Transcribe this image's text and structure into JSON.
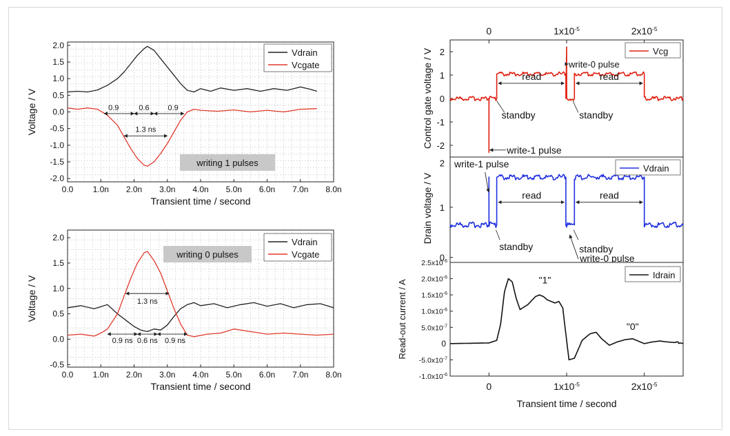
{
  "chart_data": [
    {
      "id": "write1",
      "type": "line",
      "xlabel": "Transient time / second",
      "ylabel": "Voltage / V",
      "xlim": [
        0,
        8
      ],
      "ylim": [
        -2.1,
        2.1
      ],
      "xticks": [
        "0.0",
        "1.0n",
        "2.0n",
        "3.0n",
        "4.0n",
        "5.0n",
        "6.0n",
        "7.0n",
        "8.0n"
      ],
      "yticks": [
        "-2.0",
        "-1.5",
        "-1.0",
        "-0.5",
        "0.0",
        "0.5",
        "1.0",
        "1.5",
        "2.0"
      ],
      "legend": [
        "Vdrain",
        "Vcgate"
      ],
      "label_box": "writing 1 pulses",
      "annotations": [
        "0.9",
        "0.6",
        "0.9",
        "1.3 ns"
      ],
      "series": [
        {
          "name": "Vdrain",
          "color": "#222222",
          "x": [
            0,
            0.3,
            0.6,
            0.9,
            1.2,
            1.5,
            1.7,
            1.9,
            2.1,
            2.3,
            2.4,
            2.6,
            2.8,
            3.0,
            3.2,
            3.4,
            3.6,
            3.8,
            4.0,
            4.3,
            4.6,
            5.0,
            5.4,
            5.8,
            6.2,
            6.6,
            7.0,
            7.3,
            7.5
          ],
          "y": [
            0.6,
            0.62,
            0.6,
            0.66,
            0.8,
            1.0,
            1.2,
            1.45,
            1.7,
            1.9,
            1.97,
            1.85,
            1.6,
            1.35,
            1.1,
            0.85,
            0.65,
            0.6,
            0.7,
            0.62,
            0.72,
            0.65,
            0.7,
            0.62,
            0.7,
            0.65,
            0.75,
            0.68,
            0.62
          ]
        },
        {
          "name": "Vcgate",
          "color": "#e0392b",
          "x": [
            0,
            0.3,
            0.6,
            0.9,
            1.2,
            1.5,
            1.7,
            1.9,
            2.1,
            2.3,
            2.4,
            2.6,
            2.8,
            3.0,
            3.2,
            3.4,
            3.6,
            3.8,
            4.0,
            4.5,
            5.0,
            5.5,
            6.0,
            6.5,
            7.0,
            7.5
          ],
          "y": [
            0.12,
            0.08,
            0.12,
            0.08,
            -0.1,
            -0.4,
            -0.75,
            -1.1,
            -1.4,
            -1.6,
            -1.63,
            -1.5,
            -1.25,
            -0.95,
            -0.6,
            -0.25,
            0.0,
            0.08,
            0.05,
            0.02,
            0.06,
            0.0,
            0.05,
            0.0,
            0.08,
            0.1
          ]
        }
      ]
    },
    {
      "id": "write0",
      "type": "line",
      "xlabel": "Transient time / second",
      "ylabel": "Voltage / V",
      "xlim": [
        0,
        8
      ],
      "ylim": [
        -0.55,
        2.15
      ],
      "xticks": [
        "0.0",
        "1.0n",
        "2.0n",
        "3.0n",
        "4.0n",
        "5.0n",
        "6.0n",
        "7.0n",
        "8.0n"
      ],
      "yticks": [
        "-0.5",
        "0.0",
        "0.5",
        "1.0",
        "1.5",
        "2.0"
      ],
      "legend": [
        "Vdrain",
        "Vcgate"
      ],
      "label_box": "writing 0 pulses",
      "annotations": [
        "1.3 ns",
        "0.9 ns",
        "0.6 ns",
        "0.9 ns"
      ],
      "series": [
        {
          "name": "Vdrain",
          "color": "#222222",
          "x": [
            0,
            0.4,
            0.8,
            1.2,
            1.5,
            1.8,
            2.0,
            2.2,
            2.4,
            2.6,
            2.8,
            3.0,
            3.2,
            3.4,
            3.6,
            3.8,
            4.0,
            4.4,
            4.8,
            5.2,
            5.6,
            6.0,
            6.4,
            6.8,
            7.2,
            7.6,
            8.0
          ],
          "y": [
            0.62,
            0.66,
            0.6,
            0.68,
            0.5,
            0.35,
            0.25,
            0.18,
            0.15,
            0.2,
            0.18,
            0.28,
            0.45,
            0.6,
            0.68,
            0.72,
            0.66,
            0.7,
            0.62,
            0.68,
            0.72,
            0.65,
            0.7,
            0.62,
            0.68,
            0.7,
            0.62
          ]
        },
        {
          "name": "Vcgate",
          "color": "#e0392b",
          "x": [
            0,
            0.4,
            0.8,
            1.0,
            1.2,
            1.5,
            1.7,
            1.9,
            2.1,
            2.3,
            2.4,
            2.6,
            2.8,
            3.0,
            3.2,
            3.4,
            3.6,
            3.8,
            4.2,
            4.6,
            5.0,
            5.5,
            6.0,
            6.5,
            7.0,
            7.5,
            8.0
          ],
          "y": [
            0.08,
            0.1,
            0.06,
            0.12,
            0.2,
            0.5,
            0.85,
            1.2,
            1.5,
            1.7,
            1.73,
            1.55,
            1.3,
            0.95,
            0.6,
            0.3,
            0.08,
            0.05,
            0.1,
            0.12,
            0.2,
            0.15,
            0.1,
            0.12,
            0.1,
            0.08,
            0.1
          ]
        }
      ]
    },
    {
      "id": "control_gate",
      "type": "line",
      "ylabel": "Control gate voltage / V",
      "top_xticks": [
        "0",
        "1x10",
        "2x10"
      ],
      "top_xtick_exp": "-5",
      "xlim": [
        -0.5,
        2.5
      ],
      "ylim": [
        -2.5,
        2.5
      ],
      "yticks": [
        "-2",
        "-1",
        "0",
        "1",
        "2"
      ],
      "legend": [
        "Vcg"
      ],
      "annotations": [
        "write-0 pulse",
        "read",
        "read",
        "standby",
        "standby",
        "write-1 pulse"
      ],
      "series": [
        {
          "name": "Vcg",
          "color": "#e02010",
          "x": [
            -0.5,
            0,
            0,
            0.001,
            0.1,
            0.1,
            0.99,
            0.99,
            1.0,
            1.0,
            1.001,
            1.1,
            1.1,
            2.0,
            2.0,
            2.5
          ],
          "y": [
            0,
            0,
            -2.3,
            0,
            0,
            1.05,
            1.05,
            0,
            2.2,
            2.2,
            0,
            0,
            1.05,
            1.05,
            0,
            0
          ]
        }
      ]
    },
    {
      "id": "drain",
      "type": "line",
      "ylabel": "Drain voltage / V",
      "xlim": [
        -0.5,
        2.5
      ],
      "ylim": [
        -0.1,
        2.0
      ],
      "yticks": [
        "0",
        "1"
      ],
      "yticks_extra": [
        "2"
      ],
      "legend": [
        "Vdrain"
      ],
      "annotations": [
        "write-1 pulse",
        "read",
        "read",
        "standby",
        "standby",
        "write-0 pulse"
      ],
      "series": [
        {
          "name": "Vdrain",
          "color": "#2030e0",
          "x": [
            -0.5,
            0,
            0,
            0.001,
            0.1,
            0.1,
            0.99,
            0.99,
            1.0,
            1.0,
            1.1,
            1.1,
            2.0,
            2.0,
            2.5
          ],
          "y": [
            0.65,
            0.65,
            1.6,
            0.65,
            0.65,
            1.6,
            1.6,
            0.65,
            0.65,
            0.65,
            0.65,
            1.6,
            1.6,
            0.65,
            0.65
          ]
        }
      ]
    },
    {
      "id": "readout",
      "type": "line",
      "ylabel": "Read-out current / A",
      "xlabel": "Transient time / second",
      "xticks": [
        "0",
        "1x10",
        "2x10"
      ],
      "xtick_exp": "-5",
      "xlim": [
        -0.5,
        2.5
      ],
      "ylim": [
        -1.0,
        2.5
      ],
      "yticks": [
        "-1.0x10",
        "-5.0x10",
        "0",
        "5.0x10",
        "1.0x10",
        "1.5x10",
        "2.0x10",
        "2.5x10"
      ],
      "ytick_exps": [
        "-6",
        "-7",
        "",
        "-7",
        "-6",
        "-6",
        "-6",
        "-6"
      ],
      "legend": [
        "Idrain"
      ],
      "annotations": [
        "\"1\"",
        "\"0\""
      ],
      "series": [
        {
          "name": "Idrain",
          "color": "#111111",
          "x": [
            -0.5,
            0,
            0.1,
            0.15,
            0.2,
            0.25,
            0.3,
            0.35,
            0.4,
            0.5,
            0.6,
            0.65,
            0.7,
            0.75,
            0.8,
            0.85,
            0.9,
            0.95,
            1.0,
            1.03,
            1.1,
            1.2,
            1.3,
            1.38,
            1.45,
            1.55,
            1.65,
            1.75,
            1.85,
            1.95,
            2.0,
            2.1,
            2.2,
            2.3,
            2.4,
            2.5
          ],
          "y": [
            0,
            0.02,
            0.1,
            0.6,
            1.6,
            2.0,
            1.9,
            1.4,
            1.05,
            1.2,
            1.45,
            1.5,
            1.45,
            1.35,
            1.3,
            1.25,
            1.3,
            1.1,
            0.1,
            -0.5,
            -0.45,
            0.1,
            0.3,
            0.35,
            0.15,
            -0.05,
            0.05,
            0.12,
            0.15,
            0.05,
            0.0,
            0.05,
            0.08,
            0.05,
            0.03,
            0.02
          ]
        }
      ]
    }
  ]
}
